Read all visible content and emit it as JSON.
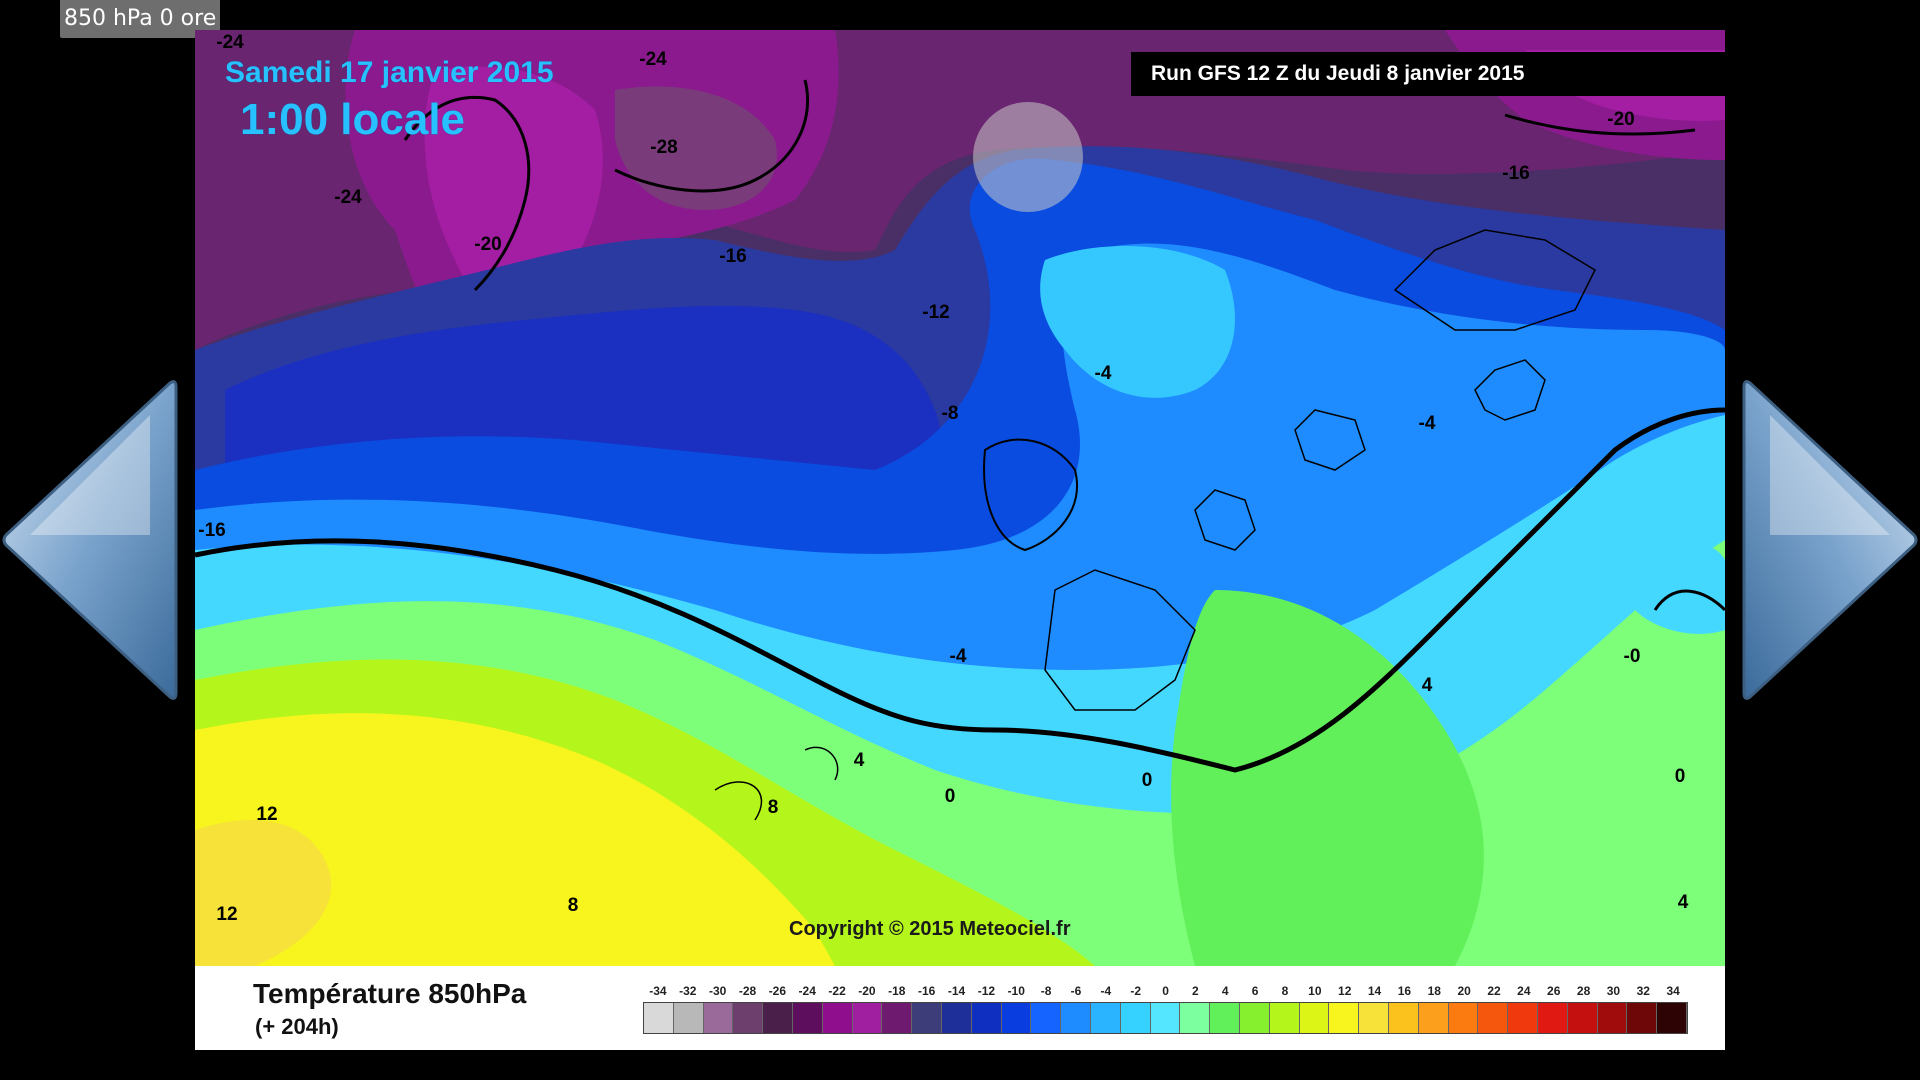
{
  "caption": "850 hPa 0 ore",
  "map": {
    "date_title": "Samedi 17 janvier 2015",
    "time_title": "1:00 locale",
    "run_info": "Run GFS 12 Z du Jeudi 8 janvier 2015",
    "copyright": "Copyright © 2015 Meteociel.fr",
    "contour_labels": [
      "-24",
      "-24",
      "-24",
      "-28",
      "-20",
      "-16",
      "-12",
      "-8",
      "-4",
      "-16",
      "-20",
      "-16",
      "-4",
      "-16",
      "-4",
      "-0",
      "4",
      "4",
      "0",
      "0",
      "8",
      "12",
      "12",
      "8",
      "0",
      "4"
    ]
  },
  "legend": {
    "title": "Température 850hPa",
    "subtitle": "(+ 204h)",
    "scale_values": [
      "-34",
      "-32",
      "-30",
      "-28",
      "-26",
      "-24",
      "-22",
      "-20",
      "-18",
      "-16",
      "-14",
      "-12",
      "-10",
      "-8",
      "-6",
      "-4",
      "-2",
      "0",
      "2",
      "4",
      "6",
      "8",
      "10",
      "12",
      "14",
      "16",
      "18",
      "20",
      "22",
      "24",
      "26",
      "28",
      "30",
      "32",
      "34"
    ],
    "scale_colors": [
      "#d9d9d9",
      "#b8b8b8",
      "#9a6b9a",
      "#6d3f6d",
      "#4a1f4a",
      "#5d0f5d",
      "#8e0e8e",
      "#a01ea0",
      "#6e1a6e",
      "#3d3d7a",
      "#1f2f9a",
      "#0e2fbf",
      "#0a3de0",
      "#1564ff",
      "#1e8cff",
      "#2ab4ff",
      "#35d2ff",
      "#55e6ff",
      "#7cff9e",
      "#62f05a",
      "#86ef2e",
      "#b4f51c",
      "#dcf516",
      "#f7f51d",
      "#f7e23a",
      "#fbc21d",
      "#fb9f1d",
      "#fb7b10",
      "#f5580c",
      "#f03a0e",
      "#e01a12",
      "#c4100f",
      "#a00c0c",
      "#6e0707",
      "#2d0303"
    ],
    "icons": [
      "prev-arrow-icon",
      "next-arrow-icon"
    ]
  }
}
